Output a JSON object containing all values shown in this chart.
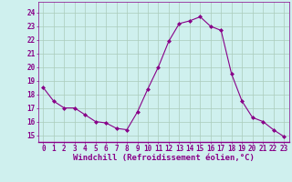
{
  "x": [
    0,
    1,
    2,
    3,
    4,
    5,
    6,
    7,
    8,
    9,
    10,
    11,
    12,
    13,
    14,
    15,
    16,
    17,
    18,
    19,
    20,
    21,
    22,
    23
  ],
  "y": [
    18.5,
    17.5,
    17.0,
    17.0,
    16.5,
    16.0,
    15.9,
    15.5,
    15.4,
    16.7,
    18.4,
    20.0,
    21.9,
    23.2,
    23.4,
    23.7,
    23.0,
    22.7,
    19.5,
    17.5,
    16.3,
    16.0,
    15.4,
    14.9
  ],
  "line_color": "#880088",
  "marker": "D",
  "marker_size": 2,
  "bg_color": "#cff0ee",
  "grid_color": "#aaccbb",
  "xlabel": "Windchill (Refroidissement éolien,°C)",
  "xlabel_color": "#880088",
  "xlabel_fontsize": 6.5,
  "tick_color": "#880088",
  "tick_fontsize": 5.5,
  "ytick_labels": [
    "15",
    "16",
    "17",
    "18",
    "19",
    "20",
    "21",
    "22",
    "23",
    "24"
  ],
  "ytick_values": [
    15,
    16,
    17,
    18,
    19,
    20,
    21,
    22,
    23,
    24
  ],
  "ylim": [
    14.5,
    24.8
  ],
  "xlim": [
    -0.5,
    23.5
  ],
  "xtick_labels": [
    "0",
    "1",
    "2",
    "3",
    "4",
    "5",
    "6",
    "7",
    "8",
    "9",
    "10",
    "11",
    "12",
    "13",
    "14",
    "15",
    "16",
    "17",
    "18",
    "19",
    "20",
    "21",
    "22",
    "23"
  ]
}
